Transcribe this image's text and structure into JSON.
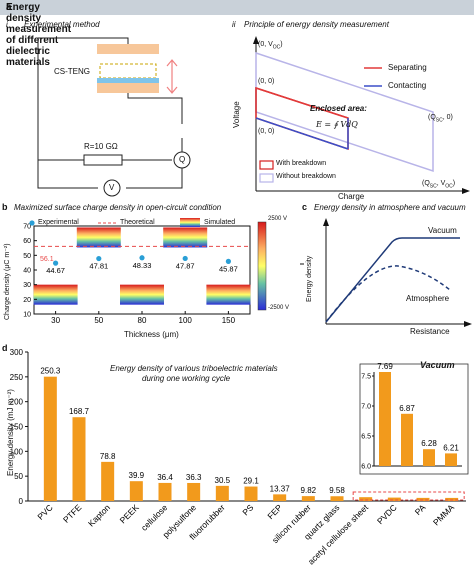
{
  "header": {
    "panel": "a",
    "title": "Energy density measurement of different dielectric materials"
  },
  "panel_a": {
    "sub_i": {
      "roman": "i",
      "title": "Experimental method",
      "device": "CS-TENG",
      "resistor": "R=10 GΩ",
      "meter_q": "Q",
      "meter_v": "V"
    },
    "sub_ii": {
      "roman": "ii",
      "title": "Principle of energy density measurement",
      "y_label": "Voltage",
      "x_label": "Charge",
      "pt_voc": "(0, V",
      "pt_voc_sub": "OC",
      "pt_voc_end": ")",
      "pt_origin_top": "(0, 0)",
      "pt_origin_bot": "(0, 0)",
      "pt_qsc": "(Q",
      "pt_qsc_sub": "SC",
      "pt_qsc_end": ", 0)",
      "pt_qsc_voc": "(Q",
      "pt_qsc_voc_sub": "SC",
      "pt_qsc_voc_mid": ", V",
      "pt_qsc_voc_sub2": "OC",
      "pt_qsc_voc_end": ")",
      "enclosed": "Enclosed area:",
      "formula": "E = ∮ VdQ",
      "legend_sep": "Separating",
      "legend_con": "Contacting",
      "legend_break": "With breakdown",
      "legend_nobreak": "Without breakdown",
      "colors": {
        "separating": "#e23a3a",
        "contacting": "#3b4fc8",
        "with_breakdown": "#d62020",
        "without_breakdown": "#b8b4e8"
      }
    }
  },
  "panel_b": {
    "letter": "b",
    "title": "Maximized surface charge density in open-circuit condition",
    "legend_exp": "Experimental",
    "legend_theo": "Theoretical",
    "legend_sim": "Simulated",
    "colorbar_max": "2500 V",
    "colorbar_min": "-2500 V",
    "theoretical_label": "56.1"
  },
  "panel_c": {
    "letter": "c",
    "title": "Energy density in atmosphere and vacuum",
    "y_label": "Energy density",
    "x_label": "Resistance",
    "series_vacuum": "Vacuum",
    "series_atm": "Atmosphere"
  },
  "panel_d": {
    "letter": "d",
    "title_line1": "Energy density of various triboelectric materials",
    "title_line2": "during one working cycle",
    "condition": "Vacuum"
  },
  "chart_data": [
    {
      "id": "b",
      "type": "scatter",
      "xlabel": "Thickness (μm)",
      "ylabel": "Charge density (μC m⁻²)",
      "categories": [
        "30",
        "50",
        "80",
        "100",
        "150"
      ],
      "values": [
        44.67,
        47.81,
        48.33,
        47.87,
        45.87
      ],
      "value_labels": [
        "44.67",
        "47.81",
        "48.33",
        "47.87",
        "45.87"
      ],
      "theoretical": 56.1,
      "ylim": [
        10,
        70
      ],
      "yticks": [
        "10",
        "20",
        "30",
        "40",
        "50",
        "60",
        "70"
      ],
      "colors": {
        "experimental": "#2a9fd6",
        "theoretical": "#e84a4a"
      }
    },
    {
      "id": "d",
      "type": "bar",
      "xlabel": "",
      "ylabel": "Energy density (mJ m⁻²)",
      "categories": [
        "PVC",
        "PTFE",
        "Kapton",
        "PEEK",
        "cellulose",
        "polysulfone",
        "fluororubber",
        "PS",
        "FEP",
        "silicon rubber",
        "quartz glass",
        "acetyl cellulose sheet",
        "PVDC",
        "PA",
        "PMMA"
      ],
      "values": [
        250.3,
        168.7,
        78.8,
        39.9,
        36.4,
        36.3,
        30.5,
        29.1,
        13.37,
        9.82,
        9.58,
        7.69,
        6.87,
        6.28,
        6.21
      ],
      "value_labels": [
        "250.3",
        "168.7",
        "78.8",
        "39.9",
        "36.4",
        "36.3",
        "30.5",
        "29.1",
        "13.37",
        "9.82",
        "9.58",
        "",
        "",
        "",
        ""
      ],
      "ylim": [
        0,
        300
      ],
      "yticks": [
        "0",
        "50",
        "100",
        "150",
        "200",
        "250",
        "300"
      ],
      "colors": {
        "bar": "#f29a1c"
      }
    },
    {
      "id": "d-inset",
      "type": "bar",
      "categories": [
        "acetyl cellulose sheet",
        "PVDC",
        "PA",
        "PMMA"
      ],
      "values": [
        7.69,
        6.87,
        6.28,
        6.21
      ],
      "value_labels": [
        "7.69",
        "6.87",
        "6.28",
        "6.21"
      ],
      "ylim": [
        6.0,
        7.5
      ],
      "yticks": [
        "6.0",
        "6.5",
        "7.0",
        "7.5"
      ],
      "colors": {
        "bar": "#f29a1c"
      }
    }
  ]
}
